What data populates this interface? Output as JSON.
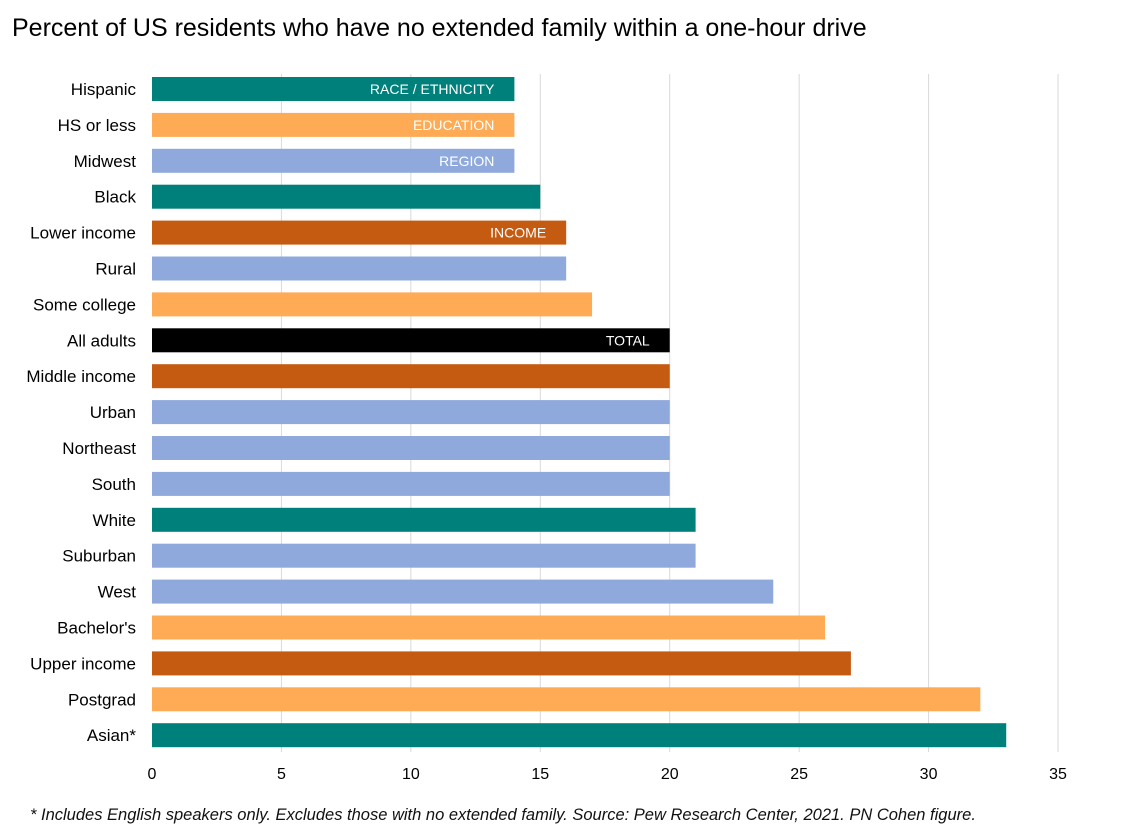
{
  "title": "Percent of US residents who have no extended family within a one-hour drive",
  "footnote": "* Includes English speakers only. Excludes those with no extended family. Source: Pew Research Center, 2021. PN Cohen figure.",
  "colors": {
    "race_ethnicity": "#00807A",
    "education": "#FFAB55",
    "region": "#8FA9DC",
    "income": "#C55A11",
    "total": "#000000",
    "grid": "#D9D9D9"
  },
  "chart_data": {
    "type": "bar",
    "orientation": "horizontal",
    "title": "Percent of US residents who have no extended family within a one-hour drive",
    "xlabel": "",
    "ylabel": "",
    "xlim": [
      0,
      35
    ],
    "xticks": [
      0,
      5,
      10,
      15,
      20,
      25,
      30,
      35
    ],
    "grid": true,
    "categories": [
      "Hispanic",
      "HS or less",
      "Midwest",
      "Black",
      "Lower income",
      "Rural",
      "Some college",
      "All adults",
      "Middle income",
      "Urban",
      "Northeast",
      "South",
      "White",
      "Suburban",
      "West",
      "Bachelor's",
      "Upper income",
      "Postgrad",
      "Asian*"
    ],
    "values": [
      14,
      14,
      14,
      15,
      16,
      16,
      17,
      20,
      20,
      20,
      20,
      20,
      21,
      21,
      24,
      26,
      27,
      32,
      33
    ],
    "groups": [
      "race_ethnicity",
      "education",
      "region",
      "race_ethnicity",
      "income",
      "region",
      "education",
      "total",
      "income",
      "region",
      "region",
      "region",
      "race_ethnicity",
      "region",
      "region",
      "education",
      "income",
      "education",
      "race_ethnicity"
    ],
    "group_labels": [
      "RACE / ETHNICITY",
      "EDUCATION",
      "REGION",
      "",
      "INCOME",
      "",
      "",
      "TOTAL",
      "",
      "",
      "",
      "",
      "",
      "",
      "",
      "",
      "",
      "",
      ""
    ]
  }
}
